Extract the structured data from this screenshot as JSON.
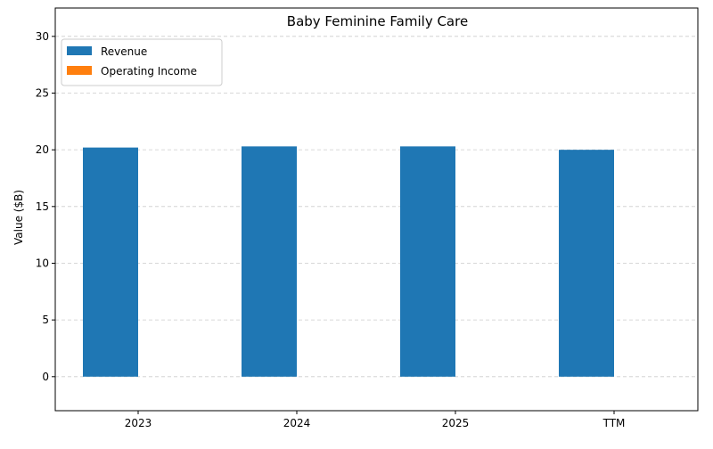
{
  "chart_data": {
    "type": "bar",
    "title": "Baby Feminine Family Care",
    "xlabel": "",
    "ylabel": "Value ($B)",
    "categories": [
      "2023",
      "2024",
      "2025",
      "TTM"
    ],
    "series": [
      {
        "name": "Revenue",
        "values": [
          20.2,
          20.3,
          20.3,
          20.0
        ],
        "color": "#1f77b4"
      },
      {
        "name": "Operating Income",
        "values": [
          0,
          0,
          0,
          0
        ],
        "color": "#ff7f0e"
      }
    ],
    "ylim": [
      -3,
      32.5
    ],
    "yticks": [
      0,
      5,
      10,
      15,
      20,
      25,
      30
    ],
    "grid": "y dashed",
    "legend_position": "top-left"
  }
}
